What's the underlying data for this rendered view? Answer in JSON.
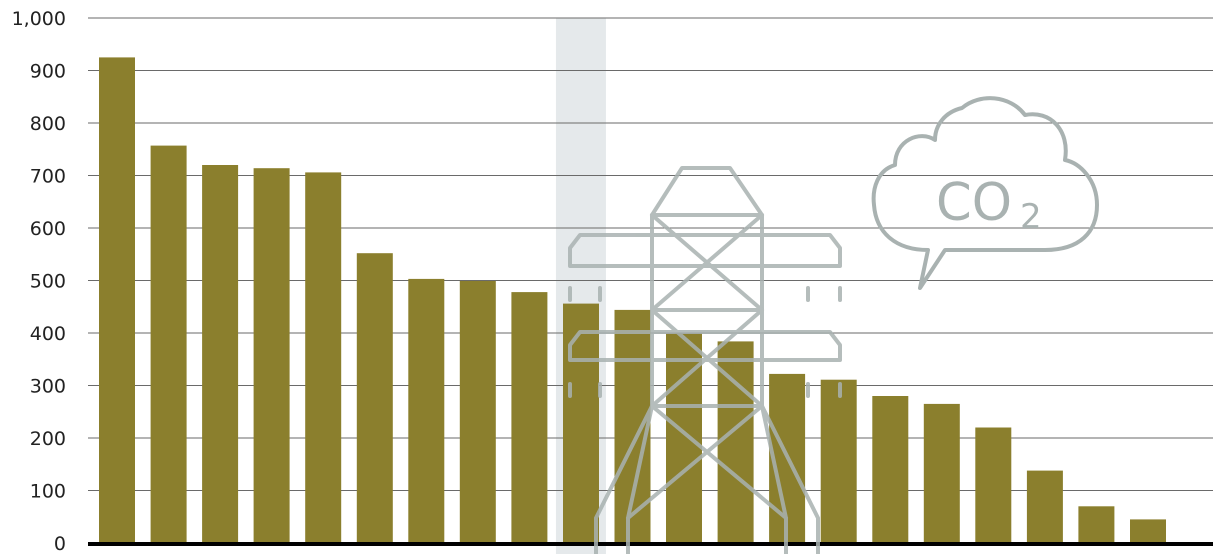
{
  "chart_data": {
    "type": "bar",
    "title": "",
    "xlabel": "",
    "ylabel": "",
    "ylim": [
      0,
      1000
    ],
    "yticks": [
      0,
      100,
      200,
      300,
      400,
      500,
      600,
      700,
      800,
      900,
      1000
    ],
    "ytick_labels": [
      "0",
      "100",
      "200",
      "300",
      "400",
      "500",
      "600",
      "700",
      "800",
      "900",
      "1,000"
    ],
    "grid": true,
    "legend": "none",
    "highlighted_index": 9,
    "values": [
      925,
      757,
      720,
      714,
      706,
      552,
      503,
      499,
      478,
      456,
      444,
      399,
      384,
      322,
      311,
      280,
      265,
      220,
      138,
      70,
      45
    ]
  },
  "colors": {
    "bar": "#8b7f2d",
    "gridline": "#6a6a6a",
    "baseline": "#000000",
    "highlight_band": "#e5e9eb",
    "icon_gray": "#a9b2b1"
  },
  "icons": {
    "pylon": "transmission-tower-icon",
    "cloud": "co2-cloud-icon"
  },
  "co2_icon": {
    "main": "CO",
    "subscript": "2"
  }
}
